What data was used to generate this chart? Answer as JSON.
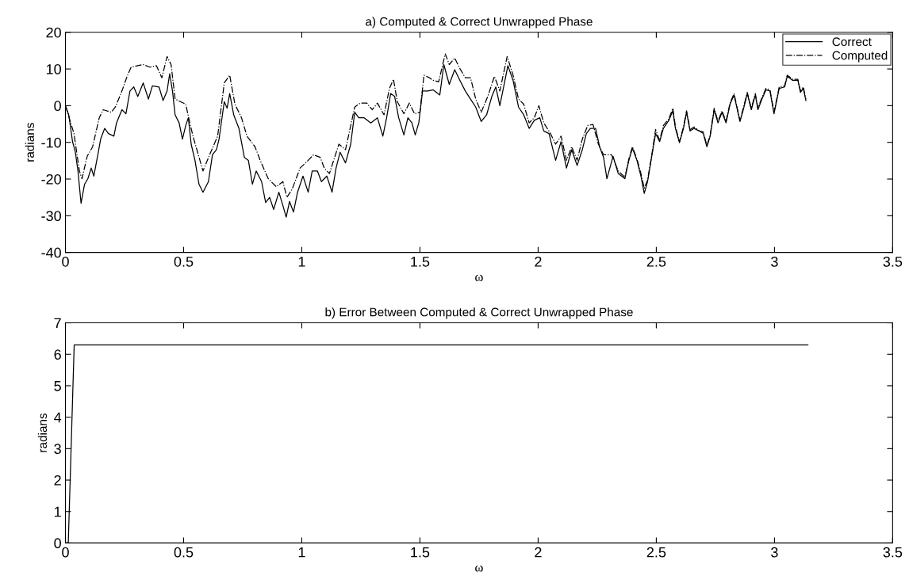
{
  "chart_data": [
    {
      "type": "line",
      "title": "a) Computed & Correct Unwrapped Phase",
      "xlabel": "ω",
      "ylabel": "radians",
      "xlim": [
        0,
        3.5
      ],
      "xticks": [
        0,
        0.5,
        1,
        1.5,
        2,
        2.5,
        3,
        3.5
      ],
      "ylim": [
        -40,
        20
      ],
      "yticks": [
        -40,
        -30,
        -20,
        -10,
        0,
        10,
        20
      ],
      "grid": false,
      "legend": "top right",
      "series": [
        {
          "name": "Correct",
          "color": "#000000",
          "line_style": "solid",
          "x": [
            0,
            0.014,
            0.03,
            0.042,
            0.053,
            0.066,
            0.081,
            0.095,
            0.109,
            0.12,
            0.137,
            0.149,
            0.166,
            0.182,
            0.205,
            0.216,
            0.239,
            0.256,
            0.273,
            0.289,
            0.306,
            0.329,
            0.351,
            0.368,
            0.396,
            0.413,
            0.43,
            0.441,
            0.453,
            0.464,
            0.481,
            0.495,
            0.509,
            0.52,
            0.532,
            0.548,
            0.565,
            0.582,
            0.605,
            0.622,
            0.639,
            0.65,
            0.672,
            0.684,
            0.695,
            0.712,
            0.734,
            0.757,
            0.774,
            0.791,
            0.807,
            0.83,
            0.847,
            0.864,
            0.881,
            0.903,
            0.92,
            0.934,
            0.948,
            0.965,
            0.982,
            1.005,
            1.027,
            1.044,
            1.066,
            1.083,
            1.106,
            1.128,
            1.145,
            1.162,
            1.185,
            1.207,
            1.224,
            1.241,
            1.264,
            1.292,
            1.32,
            1.343,
            1.359,
            1.376,
            1.393,
            1.41,
            1.432,
            1.449,
            1.466,
            1.48,
            1.495,
            1.511,
            1.534,
            1.556,
            1.584,
            1.601,
            1.624,
            1.647,
            1.669,
            1.692,
            1.714,
            1.736,
            1.759,
            1.782,
            1.804,
            1.821,
            1.838,
            1.855,
            1.872,
            1.894,
            1.917,
            1.939,
            1.962,
            1.984,
            2.007,
            2.024,
            2.046,
            2.074,
            2.097,
            2.12,
            2.142,
            2.165,
            2.187,
            2.204,
            2.221,
            2.243,
            2.26,
            2.277,
            2.291,
            2.317,
            2.339,
            2.367,
            2.384,
            2.399,
            2.418,
            2.435,
            2.449,
            2.463,
            2.48,
            2.497,
            2.514,
            2.53,
            2.553,
            2.57,
            2.581,
            2.598,
            2.615,
            2.628,
            2.643,
            2.66,
            2.682,
            2.699,
            2.714,
            2.728,
            2.745,
            2.761,
            2.778,
            2.795,
            2.812,
            2.829,
            2.854,
            2.868,
            2.885,
            2.902,
            2.919,
            2.93,
            2.947,
            2.964,
            2.981,
            2.998,
            3.02,
            3.043,
            3.054,
            3.077,
            3.099,
            3.11,
            3.122,
            3.133
          ],
          "values": [
            0,
            -2.5,
            -9.8,
            -12.7,
            -17.8,
            -26.6,
            -21.4,
            -19.9,
            -17.0,
            -19.2,
            -13.4,
            -9.1,
            -6.2,
            -7.6,
            -8.3,
            -4.7,
            -1.1,
            -2.2,
            4.0,
            5.1,
            2.5,
            6.2,
            1.8,
            5.4,
            5.1,
            1.4,
            4.0,
            8.7,
            4.0,
            -2.5,
            -4.7,
            -9.1,
            -5.4,
            -3.3,
            -10.5,
            -14.9,
            -21.4,
            -23.6,
            -20.7,
            -13.4,
            -12.0,
            -9.1,
            1.1,
            -0.7,
            3.3,
            -2.5,
            -6.2,
            -14.1,
            -14.9,
            -21.4,
            -17.8,
            -20.7,
            -26.4,
            -25.0,
            -28.3,
            -23.6,
            -27.2,
            -30.4,
            -26.1,
            -29.0,
            -23.6,
            -19.2,
            -23.6,
            -17.8,
            -17.8,
            -20.7,
            -19.2,
            -23.6,
            -17.0,
            -12.7,
            -15.6,
            -10.5,
            -1.8,
            -3.3,
            -3.3,
            -4.7,
            -3.3,
            -8.3,
            -3.3,
            3.3,
            2.5,
            -3.3,
            -8.0,
            -3.3,
            -4.7,
            -8.0,
            -4.7,
            4.0,
            4.0,
            4.3,
            2.9,
            11.2,
            5.8,
            9.8,
            6.9,
            4.0,
            1.8,
            -0.4,
            -4.3,
            -2.5,
            2.5,
            5.1,
            0.0,
            5.4,
            10.9,
            6.9,
            -0.4,
            -2.5,
            -6.2,
            -4.0,
            -3.3,
            -6.9,
            -7.6,
            -14.9,
            -9.8,
            -17.0,
            -12.0,
            -16.3,
            -12.0,
            -7.6,
            -6.2,
            -6.2,
            -11.2,
            -14.1,
            -19.9,
            -13.8,
            -18.5,
            -19.9,
            -14.9,
            -11.6,
            -14.9,
            -19.2,
            -23.9,
            -20.7,
            -14.1,
            -7.6,
            -9.8,
            -6.2,
            -4.0,
            -1.4,
            -6.2,
            -10.1,
            -6.2,
            -1.8,
            -6.9,
            -6.2,
            -6.9,
            -7.6,
            -11.2,
            -8.3,
            -1.1,
            -4.7,
            -1.8,
            -4.7,
            0.4,
            2.9,
            -4.3,
            -1.1,
            3.3,
            -1.1,
            2.9,
            -1.1,
            1.8,
            4.3,
            4.0,
            -2.2,
            4.7,
            5.1,
            8.0,
            6.9,
            6.9,
            3.6,
            4.7,
            1.4
          ]
        },
        {
          "name": "Computed",
          "color": "#000000",
          "line_style": "dashdot",
          "x": [
            0,
            0.019,
            0.036,
            0.059,
            0.07,
            0.092,
            0.115,
            0.143,
            0.16,
            0.194,
            0.211,
            0.239,
            0.261,
            0.278,
            0.306,
            0.329,
            0.357,
            0.385,
            0.408,
            0.43,
            0.447,
            0.464,
            0.486,
            0.509,
            0.526,
            0.543,
            0.582,
            0.61,
            0.644,
            0.672,
            0.695,
            0.717,
            0.745,
            0.768,
            0.802,
            0.824,
            0.858,
            0.892,
            0.92,
            0.937,
            0.959,
            0.993,
            1.027,
            1.05,
            1.078,
            1.095,
            1.117,
            1.157,
            1.185,
            1.224,
            1.247,
            1.275,
            1.298,
            1.32,
            1.348,
            1.371,
            1.388,
            1.404,
            1.432,
            1.455,
            1.477,
            1.5,
            1.517,
            1.54,
            1.556,
            1.579,
            1.607,
            1.624,
            1.647,
            1.669,
            1.692,
            1.714,
            1.736,
            1.759,
            1.787,
            1.815,
            1.838,
            1.869,
            1.894,
            1.917,
            1.939,
            1.962,
            1.984,
            2.003,
            2.024,
            2.052,
            2.074,
            2.097,
            2.12,
            2.142,
            2.165,
            2.187,
            2.21,
            2.232,
            2.255,
            2.277,
            2.311,
            2.339,
            2.367,
            2.384,
            2.399,
            2.418,
            2.435,
            2.449,
            2.463,
            2.48,
            2.497,
            2.514,
            2.53,
            2.553,
            2.57,
            2.581,
            2.598,
            2.615,
            2.628,
            2.643,
            2.66,
            2.682,
            2.699,
            2.714,
            2.728,
            2.745,
            2.761,
            2.778,
            2.795,
            2.812,
            2.829,
            2.854,
            2.868,
            2.885,
            2.902,
            2.919,
            2.93,
            2.947,
            2.964,
            2.981,
            2.998,
            3.02,
            3.043,
            3.054,
            3.077,
            3.099,
            3.11,
            3.122,
            3.133
          ],
          "values": [
            0,
            -4.0,
            -7.6,
            -17.8,
            -19.9,
            -13.8,
            -11.2,
            -3.3,
            -1.1,
            -1.8,
            -0.4,
            4.0,
            8.0,
            10.5,
            10.9,
            11.2,
            10.5,
            10.9,
            7.6,
            13.4,
            11.2,
            1.8,
            1.1,
            0.4,
            -4.7,
            -9.1,
            -17.8,
            -13.4,
            -8.3,
            6.2,
            8.3,
            0.4,
            -3.3,
            -8.3,
            -11.2,
            -14.9,
            -19.9,
            -22.1,
            -20.7,
            -25.0,
            -22.8,
            -17.0,
            -14.9,
            -13.4,
            -14.1,
            -17.0,
            -18.5,
            -10.5,
            -12.0,
            -0.4,
            0.7,
            0.7,
            -1.1,
            0.7,
            -2.5,
            4.7,
            7.2,
            1.1,
            -2.2,
            0.7,
            -2.2,
            -1.8,
            8.3,
            7.6,
            6.9,
            6.5,
            14.1,
            11.2,
            13.0,
            10.1,
            7.6,
            7.6,
            1.8,
            -1.8,
            2.5,
            8.0,
            4.0,
            13.4,
            8.3,
            1.8,
            0.4,
            -4.7,
            -3.3,
            0.0,
            -4.7,
            -7.6,
            -10.5,
            -8.3,
            -14.9,
            -11.2,
            -14.9,
            -9.1,
            -5.4,
            -5.1,
            -10.5,
            -13.4,
            -13.4,
            -17.8,
            -19.5,
            -14.5,
            -11.2,
            -14.5,
            -18.5,
            -22.5,
            -20.3,
            -13.8,
            -6.5,
            -9.5,
            -5.4,
            -3.6,
            -0.7,
            -5.8,
            -9.8,
            -5.8,
            -1.4,
            -6.5,
            -5.8,
            -6.9,
            -7.2,
            -10.9,
            -8.0,
            -0.7,
            -4.3,
            -1.4,
            -4.3,
            0.7,
            3.3,
            -4.0,
            -0.7,
            3.6,
            -0.7,
            3.3,
            -0.7,
            2.2,
            4.7,
            4.3,
            -1.8,
            5.1,
            5.4,
            8.3,
            7.2,
            7.2,
            4.0,
            5.1,
            1.8
          ]
        }
      ]
    },
    {
      "type": "line",
      "title": "b) Error Between Computed & Correct Unwrapped Phase",
      "xlabel": "ω",
      "ylabel": "radians",
      "xlim": [
        0,
        3.5
      ],
      "xticks": [
        0,
        0.5,
        1,
        1.5,
        2,
        2.5,
        3,
        3.5
      ],
      "ylim": [
        0,
        7
      ],
      "yticks": [
        0,
        1,
        2,
        3,
        4,
        5,
        6,
        7
      ],
      "grid": false,
      "series": [
        {
          "color": "#000000",
          "line_style": "solid",
          "x": [
            0,
            0.012,
            0.037,
            3.1416
          ],
          "values": [
            0,
            0,
            6.3,
            6.3
          ]
        }
      ]
    }
  ]
}
